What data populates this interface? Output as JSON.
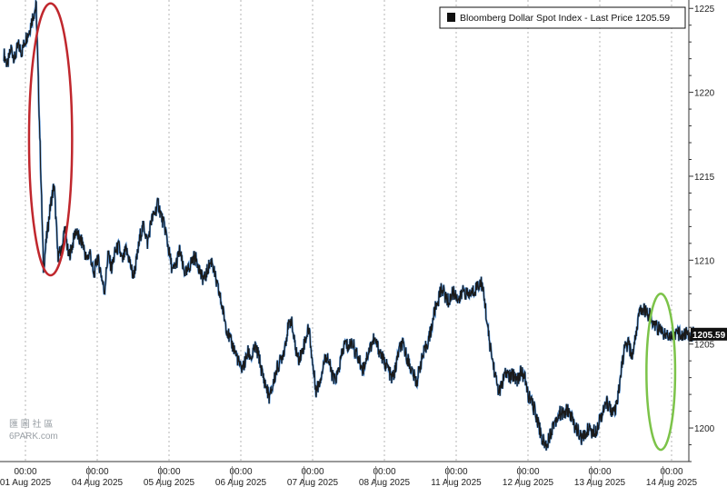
{
  "chart_data": {
    "type": "line",
    "title": "",
    "xlabel": "",
    "ylabel": "",
    "legend": {
      "placement": "top-right",
      "entry": "Bloomberg Dollar Spot Index - Last Price 1205.59",
      "color": "#111111"
    },
    "last_price_label": "1205.59",
    "ylim": [
      1198,
      1225.5
    ],
    "y_ticks": [
      1200,
      1205,
      1210,
      1215,
      1220,
      1225
    ],
    "y_tick_labels": [
      "1200",
      "1205",
      "1210",
      "1215",
      "1220",
      "1225"
    ],
    "x_ticks": [
      {
        "time": "01 Aug 2025 00:00",
        "time_label": "00:00",
        "date_label": "01 Aug 2025",
        "day": 0
      },
      {
        "time": "04 Aug 2025 00:00",
        "time_label": "00:00",
        "date_label": "04 Aug 2025",
        "day": 1
      },
      {
        "time": "05 Aug 2025 00:00",
        "time_label": "00:00",
        "date_label": "05 Aug 2025",
        "day": 2
      },
      {
        "time": "06 Aug 2025 00:00",
        "time_label": "00:00",
        "date_label": "06 Aug 2025",
        "day": 3
      },
      {
        "time": "07 Aug 2025 00:00",
        "time_label": "00:00",
        "date_label": "07 Aug 2025",
        "day": 4
      },
      {
        "time": "08 Aug 2025 00:00",
        "time_label": "00:00",
        "date_label": "08 Aug 2025",
        "day": 5
      },
      {
        "time": "11 Aug 2025 00:00",
        "time_label": "00:00",
        "date_label": "11 Aug 2025",
        "day": 6
      },
      {
        "time": "12 Aug 2025 00:00",
        "time_label": "00:00",
        "date_label": "12 Aug 2025",
        "day": 7
      },
      {
        "time": "13 Aug 2025 00:00",
        "time_label": "00:00",
        "date_label": "13 Aug 2025",
        "day": 8
      },
      {
        "time": "14 Aug 2025 00:00",
        "time_label": "00:00",
        "date_label": "14 Aug 2025",
        "day": 9
      }
    ],
    "grid": {
      "vertical": "dashed",
      "horizontal": false
    },
    "series": [
      {
        "color": "#1a1a1a",
        "accent_color": "#2f7fd6",
        "x": [
          -0.3,
          -0.25,
          -0.2,
          -0.15,
          -0.1,
          -0.05,
          0.0,
          0.05,
          0.1,
          0.15,
          0.2,
          0.25,
          0.3,
          0.35,
          0.4,
          0.45,
          0.5,
          0.55,
          0.6,
          0.65,
          0.7,
          0.75,
          0.8,
          0.85,
          0.9,
          0.95,
          1.0,
          1.05,
          1.1,
          1.15,
          1.2,
          1.25,
          1.3,
          1.35,
          1.4,
          1.45,
          1.5,
          1.55,
          1.6,
          1.65,
          1.7,
          1.75,
          1.8,
          1.85,
          1.9,
          1.95,
          2.0,
          2.05,
          2.1,
          2.15,
          2.2,
          2.25,
          2.3,
          2.35,
          2.4,
          2.45,
          2.5,
          2.55,
          2.6,
          2.65,
          2.7,
          2.75,
          2.8,
          2.85,
          2.9,
          2.95,
          3.0,
          3.05,
          3.1,
          3.15,
          3.2,
          3.25,
          3.3,
          3.35,
          3.4,
          3.45,
          3.5,
          3.55,
          3.6,
          3.65,
          3.7,
          3.75,
          3.8,
          3.85,
          3.9,
          3.95,
          4.0,
          4.05,
          4.1,
          4.15,
          4.2,
          4.25,
          4.3,
          4.35,
          4.4,
          4.45,
          4.5,
          4.55,
          4.6,
          4.65,
          4.7,
          4.75,
          4.8,
          4.85,
          4.9,
          4.95,
          5.0,
          5.05,
          5.1,
          5.15,
          5.2,
          5.25,
          5.3,
          5.35,
          5.4,
          5.45,
          5.5,
          5.55,
          5.6,
          5.65,
          5.7,
          5.75,
          5.8,
          5.85,
          5.9,
          5.95,
          6.0,
          6.05,
          6.1,
          6.15,
          6.2,
          6.25,
          6.3,
          6.35,
          6.4,
          6.45,
          6.5,
          6.55,
          6.6,
          6.65,
          6.7,
          6.75,
          6.8,
          6.85,
          6.9,
          6.95,
          7.0,
          7.05,
          7.1,
          7.15,
          7.2,
          7.25,
          7.3,
          7.35,
          7.4,
          7.45,
          7.5,
          7.55,
          7.6,
          7.65,
          7.7,
          7.75,
          7.8,
          7.85,
          7.9,
          7.95,
          8.0,
          8.05,
          8.1,
          8.15,
          8.2,
          8.25,
          8.3,
          8.35,
          8.4,
          8.45,
          8.5,
          8.55,
          8.6,
          8.65,
          8.7,
          8.75,
          8.8,
          8.85,
          8.9,
          8.95,
          9.0,
          9.05,
          9.1,
          9.15,
          9.2,
          9.25,
          9.3,
          9.35
        ],
        "values": [
          1222.3,
          1221.6,
          1222.6,
          1222.0,
          1222.8,
          1222.4,
          1223.2,
          1223.6,
          1224.5,
          1225.1,
          1217.5,
          1209.5,
          1211.5,
          1213.3,
          1214.5,
          1210.3,
          1210.5,
          1212.0,
          1210.2,
          1210.8,
          1211.8,
          1211.2,
          1211.0,
          1210.0,
          1210.5,
          1209.0,
          1210.2,
          1209.3,
          1208.1,
          1210.4,
          1209.5,
          1210.5,
          1210.8,
          1209.9,
          1210.6,
          1210.0,
          1209.0,
          1210.0,
          1211.5,
          1212.1,
          1211.0,
          1212.3,
          1212.8,
          1213.4,
          1212.5,
          1211.8,
          1210.5,
          1209.3,
          1209.8,
          1210.6,
          1209.4,
          1209.2,
          1209.8,
          1210.2,
          1209.9,
          1209.0,
          1208.9,
          1209.6,
          1210.0,
          1208.8,
          1208.0,
          1207.0,
          1206.0,
          1205.2,
          1204.8,
          1204.2,
          1203.5,
          1203.8,
          1204.5,
          1204.2,
          1204.8,
          1204.3,
          1203.2,
          1202.5,
          1201.8,
          1202.6,
          1203.5,
          1204.0,
          1204.6,
          1205.8,
          1206.5,
          1205.0,
          1204.1,
          1204.5,
          1205.3,
          1206.0,
          1203.8,
          1202.2,
          1202.8,
          1203.8,
          1204.4,
          1203.5,
          1202.8,
          1203.2,
          1204.2,
          1205.1,
          1204.8,
          1205.2,
          1204.5,
          1204.0,
          1203.5,
          1204.2,
          1204.8,
          1205.3,
          1204.9,
          1204.4,
          1203.9,
          1203.6,
          1202.9,
          1203.4,
          1204.6,
          1205.0,
          1204.4,
          1203.8,
          1203.2,
          1202.7,
          1203.8,
          1204.4,
          1205.1,
          1205.8,
          1207.0,
          1207.6,
          1208.4,
          1207.8,
          1207.5,
          1208.1,
          1207.9,
          1207.6,
          1208.3,
          1207.9,
          1208.0,
          1208.2,
          1208.5,
          1208.7,
          1207.5,
          1205.5,
          1204.2,
          1203.0,
          1202.1,
          1202.8,
          1203.3,
          1203.0,
          1203.2,
          1202.9,
          1203.3,
          1203.1,
          1202.0,
          1201.5,
          1201.0,
          1200.2,
          1199.3,
          1199.0,
          1199.5,
          1200.2,
          1200.6,
          1200.9,
          1200.8,
          1201.1,
          1200.7,
          1200.1,
          1199.8,
          1199.3,
          1199.6,
          1200.1,
          1199.7,
          1199.9,
          1200.6,
          1201.0,
          1201.5,
          1201.2,
          1200.8,
          1201.6,
          1203.5,
          1204.8,
          1205.0,
          1204.2,
          1205.6,
          1206.8,
          1207.2,
          1206.9,
          1206.7,
          1206.3,
          1206.0,
          1205.8,
          1205.6,
          1205.59,
          1205.59,
          1205.59,
          1205.59,
          1205.59,
          1205.59,
          1205.59,
          1205.59,
          1205.59
        ]
      }
    ],
    "annotations": [
      {
        "shape": "ellipse",
        "color": "#c0272d",
        "x_range": [
          0.05,
          0.65
        ],
        "y_range": [
          1209.1,
          1225.3
        ]
      },
      {
        "shape": "ellipse",
        "color": "#7cc349",
        "x_range": [
          8.65,
          9.05
        ],
        "y_range": [
          1198.7,
          1208.0
        ]
      }
    ]
  },
  "watermark": {
    "line1": "匯 圖 社 區",
    "line2": "6PARK.com"
  }
}
